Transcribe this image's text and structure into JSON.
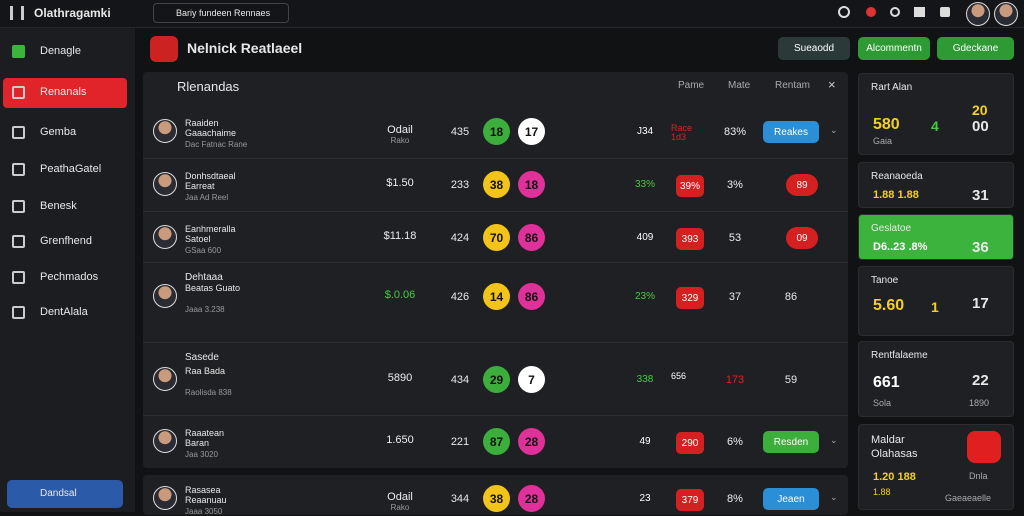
{
  "top": {
    "brand": "Olathragamki",
    "search": "Bariy fundeen Rennaes"
  },
  "sidebar": {
    "items": [
      "Denagle",
      "Renanals",
      "Gemba",
      "PeathaGatel",
      "Benesk",
      "Grenfhend",
      "Pechmados",
      "DentAlala"
    ],
    "active": 1,
    "bottom": "Dandsal"
  },
  "header": {
    "title": "Nelnick Reatlaeel",
    "buttons": [
      "Sueaodd",
      "Alcommentn",
      "Gdeckane"
    ]
  },
  "panel": {
    "title": "Rlenandas",
    "columns": [
      "Pame",
      "Mate",
      "Rentam"
    ],
    "rows": [
      {
        "name": "Raaiden Gaaachaime",
        "sub": "Dac Fatnac Rane",
        "price": "Odail",
        "price_sub": "Rako",
        "num": "435",
        "b1": {
          "text": "18",
          "color": "#3cae3c"
        },
        "b2": {
          "text": "17",
          "color": "#ffffff"
        },
        "pct": {
          "text": "J34",
          "color": "#ffffff"
        },
        "tag": {
          "text": "Race 1d3",
          "color": "#e02020",
          "kind": "text"
        },
        "pct2": "83%",
        "action": {
          "text": "Reakes",
          "color": "#2a8fd6"
        }
      },
      {
        "name": "Donhsdtaeal Earreat",
        "sub": "Jaa Ad Reel",
        "price": "$1.50",
        "num": "233",
        "b1": {
          "text": "38",
          "color": "#f2c318"
        },
        "b2": {
          "text": "18",
          "color": "#e0309a"
        },
        "pct": {
          "text": "33%",
          "color": "#3fcf3f"
        },
        "tag": {
          "text": "39%",
          "color": "#d42020",
          "kind": "badge"
        },
        "pct2": "3%",
        "end": {
          "text": "89",
          "color": "#d42020"
        }
      },
      {
        "name": "Eanhmeralla Satoel",
        "sub": "GSaa 600",
        "price": "$11.18",
        "num": "424",
        "b1": {
          "text": "70",
          "color": "#f2c318"
        },
        "b2": {
          "text": "86",
          "color": "#e0309a"
        },
        "pct": {
          "text": "409",
          "color": "#ffffff"
        },
        "tag": {
          "text": "393",
          "color": "#d42020",
          "kind": "badge"
        },
        "pct2": "53",
        "end": {
          "text": "09",
          "color": "#d42020"
        }
      },
      {
        "section": "Dehtaaa",
        "name": "Beatas Guato",
        "sub": "Jaaa 3.238",
        "price": "$.0.06",
        "price_color": "#3fcf3f",
        "num": "426",
        "b1": {
          "text": "14",
          "color": "#f2c318"
        },
        "b2": {
          "text": "86",
          "color": "#e0309a"
        },
        "pct": {
          "text": "23%",
          "color": "#3fcf3f"
        },
        "tag": {
          "text": "329",
          "color": "#d42020",
          "kind": "badge"
        },
        "pct2": "37",
        "end_text": "86"
      },
      {
        "section": "Sasede",
        "name": "Raa Bada",
        "sub": "Raolisda 838",
        "price": "5890",
        "num": "434",
        "b1": {
          "text": "29",
          "color": "#3cae3c"
        },
        "b2": {
          "text": "7",
          "color": "#ffffff"
        },
        "pct": {
          "text": "338",
          "color": "#3fcf3f"
        },
        "tag": {
          "text": "656",
          "color": "#ffffff",
          "kind": "text"
        },
        "pct2": "173",
        "pct2_color": "#e02020",
        "end_text": "59"
      },
      {
        "name": "Raaatean Baran",
        "sub": "Jaa 3020",
        "price": "1.650",
        "num": "221",
        "b1": {
          "text": "87",
          "color": "#3cae3c"
        },
        "b2": {
          "text": "28",
          "color": "#e0309a"
        },
        "pct": {
          "text": "49",
          "color": "#ffffff"
        },
        "tag": {
          "text": "290",
          "color": "#d42020",
          "kind": "badge"
        },
        "pct2": "6%",
        "action": {
          "text": "Resden",
          "color": "#3cae3c"
        }
      },
      {
        "name": "Rasasea Reaanuau",
        "sub": "Jaaa 3050",
        "price": "Odail",
        "price_sub": "Rako",
        "num": "344",
        "b1": {
          "text": "38",
          "color": "#f2c318"
        },
        "b2": {
          "text": "28",
          "color": "#e0309a"
        },
        "pct": {
          "text": "23",
          "color": "#ffffff"
        },
        "tag": {
          "text": "379",
          "color": "#d42020",
          "kind": "badge"
        },
        "pct2": "8%",
        "action": {
          "text": "Jeaen",
          "color": "#2a8fd6"
        }
      }
    ]
  },
  "cards": [
    {
      "title": "Rart Alan",
      "left": "580",
      "mid": "4",
      "right": "00",
      "right_top": "20",
      "note": "Gaia"
    },
    {
      "title": "Reanaoeda",
      "left": "1.88 1.88",
      "right": "31"
    },
    {
      "title": "Geslatoe",
      "left": "D6..23 .8%",
      "right": "36",
      "green": true
    },
    {
      "title": "Tanoe",
      "left": "5.60",
      "mid": "1",
      "right": "17"
    },
    {
      "title": "Rentfalaeme",
      "left": "661",
      "right": "22",
      "note": "Sola",
      "note_right": "1890"
    },
    {
      "title": "Maldar Olahasas",
      "left": "1.20 188",
      "note": "1.88",
      "note_right": "Dnla",
      "foot": "Gaeaeaelle"
    }
  ]
}
